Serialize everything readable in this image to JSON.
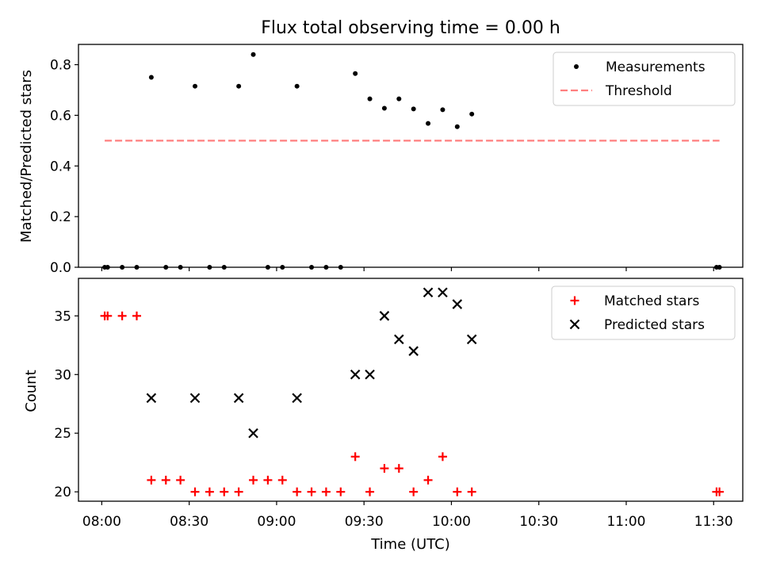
{
  "chart_data": [
    {
      "type": "scatter",
      "title": "Flux total observing time = 0.00 h",
      "xlabel": "",
      "ylabel": "Matched/Predicted stars",
      "ylim": [
        0,
        0.88
      ],
      "xlim": [
        "07:52",
        "11:40"
      ],
      "yticks": [
        0.0,
        0.2,
        0.4,
        0.6,
        0.8
      ],
      "ytick_labels": [
        "0.0",
        "0.2",
        "0.4",
        "0.6",
        "0.8"
      ],
      "legend": "top-right",
      "series": [
        {
          "name": "Measurements",
          "marker": "dot",
          "color": "#000000",
          "x": [
            "08:01",
            "08:02",
            "08:07",
            "08:12",
            "08:17",
            "08:22",
            "08:27",
            "08:32",
            "08:37",
            "08:42",
            "08:47",
            "08:52",
            "08:57",
            "09:02",
            "09:07",
            "09:12",
            "09:17",
            "09:22",
            "09:27",
            "09:32",
            "09:37",
            "09:42",
            "09:47",
            "09:52",
            "09:57",
            "10:02",
            "10:07",
            "11:31",
            "11:32"
          ],
          "y": [
            0,
            0,
            0,
            0,
            0.75,
            0,
            0,
            0.715,
            0,
            0,
            0.715,
            0.84,
            0,
            0,
            0.715,
            0,
            0,
            0,
            0.765,
            0.665,
            0.628,
            0.665,
            0.625,
            0.568,
            0.622,
            0.555,
            0.605,
            0,
            0
          ]
        },
        {
          "name": "Threshold",
          "style": "dashed",
          "color": "#ff7f7f",
          "x": [
            "08:01",
            "11:32"
          ],
          "y": [
            0.5,
            0.5
          ]
        }
      ]
    },
    {
      "type": "scatter",
      "title": "",
      "xlabel": "Time (UTC)",
      "ylabel": "Count",
      "ylim": [
        19.2,
        38.2
      ],
      "xlim": [
        "07:52",
        "11:40"
      ],
      "yticks": [
        20,
        25,
        30,
        35
      ],
      "ytick_labels": [
        "20",
        "25",
        "30",
        "35"
      ],
      "xticks": [
        "08:00",
        "08:30",
        "09:00",
        "09:30",
        "10:00",
        "10:30",
        "11:00",
        "11:30"
      ],
      "xtick_labels": [
        "08:00",
        "08:30",
        "09:00",
        "09:30",
        "10:00",
        "10:30",
        "11:00",
        "11:30"
      ],
      "legend": "top-right",
      "series": [
        {
          "name": "Matched stars",
          "marker": "plus",
          "color": "#ff0000",
          "x": [
            "08:01",
            "08:02",
            "08:07",
            "08:12",
            "08:17",
            "08:22",
            "08:27",
            "08:32",
            "08:37",
            "08:42",
            "08:47",
            "08:52",
            "08:57",
            "09:02",
            "09:07",
            "09:12",
            "09:17",
            "09:22",
            "09:27",
            "09:32",
            "09:37",
            "09:42",
            "09:47",
            "09:52",
            "09:57",
            "10:02",
            "10:07",
            "11:31",
            "11:32"
          ],
          "y": [
            35,
            35,
            35,
            35,
            21,
            21,
            21,
            20,
            20,
            20,
            20,
            21,
            21,
            21,
            20,
            20,
            20,
            20,
            23,
            20,
            22,
            22,
            20,
            21,
            23,
            20,
            20,
            20,
            20
          ]
        },
        {
          "name": "Predicted stars",
          "marker": "x",
          "color": "#000000",
          "x": [
            "08:17",
            "08:32",
            "08:47",
            "08:52",
            "09:07",
            "09:27",
            "09:32",
            "09:37",
            "09:42",
            "09:47",
            "09:52",
            "09:57",
            "10:02",
            "10:07"
          ],
          "y": [
            28,
            28,
            28,
            25,
            28,
            30,
            30,
            35,
            33,
            32,
            37,
            37,
            36,
            33
          ]
        }
      ]
    }
  ]
}
